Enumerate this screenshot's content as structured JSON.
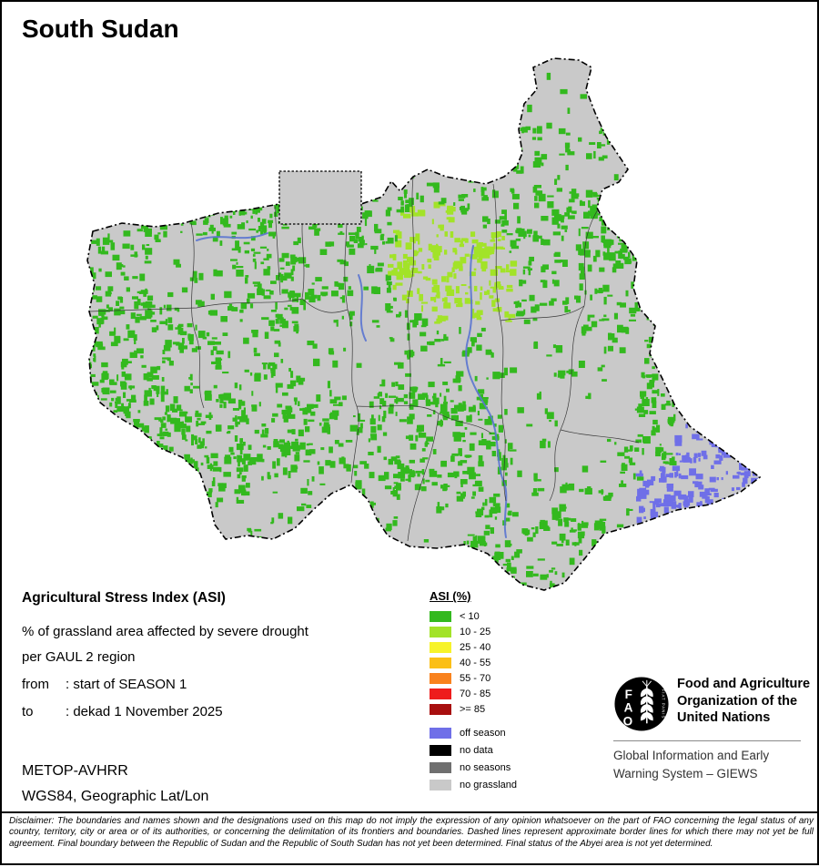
{
  "title": "South Sudan",
  "info": {
    "heading": "Agricultural Stress Index (ASI)",
    "line1": "% of grassland area affected by severe drought",
    "line2": "per GAUL 2 region",
    "from_label": "from",
    "from_value": ": start of SEASON 1",
    "to_label": "to",
    "to_value": ": dekad 1 November 2025",
    "sensor": "METOP-AVHRR",
    "projection": "WGS84, Geographic Lat/Lon"
  },
  "legend": {
    "title": "ASI (%)",
    "classes": [
      {
        "label": "< 10",
        "color": "#33b91e"
      },
      {
        "label": "10 - 25",
        "color": "#a2e328"
      },
      {
        "label": "25 - 40",
        "color": "#f7f32a"
      },
      {
        "label": "40 - 55",
        "color": "#fbbf16"
      },
      {
        "label": "55 - 70",
        "color": "#f9821d"
      },
      {
        "label": "70 - 85",
        "color": "#ee1c1c"
      },
      {
        "label": ">= 85",
        "color": "#a80f0f"
      }
    ],
    "extra": [
      {
        "label": "off season",
        "color": "#6f6fe8"
      },
      {
        "label": "no data",
        "color": "#000000"
      },
      {
        "label": "no seasons",
        "color": "#6f6f6f"
      },
      {
        "label": "no grassland",
        "color": "#c9c9c9"
      }
    ]
  },
  "map": {
    "land": "#c9c9c9",
    "boundary": "#000000",
    "admin_line": "#2a2a2a",
    "river": "#5a74d0"
  },
  "org": {
    "logo_letters": "FAO",
    "logo_motto": "FIAT PANIS",
    "name1": "Food and Agriculture",
    "name2": "Organization of the",
    "name3": "United Nations",
    "giews1": "Global Information and Early",
    "giews2": "Warning System – GIEWS"
  },
  "disclaimer": "Disclaimer: The boundaries and names shown and the designations used on this map do not imply the expression of any opinion whatsoever on the part of FAO concerning the legal status of any country, territory, city or area or of its authorities, or concerning the delimitation of its frontiers and boundaries. Dashed lines represent approximate border lines for which there may not yet be full agreement.  Final boundary between the Republic of Sudan and the Republic of South Sudan has not yet been determined. Final status of the Abyei area is not yet determined."
}
